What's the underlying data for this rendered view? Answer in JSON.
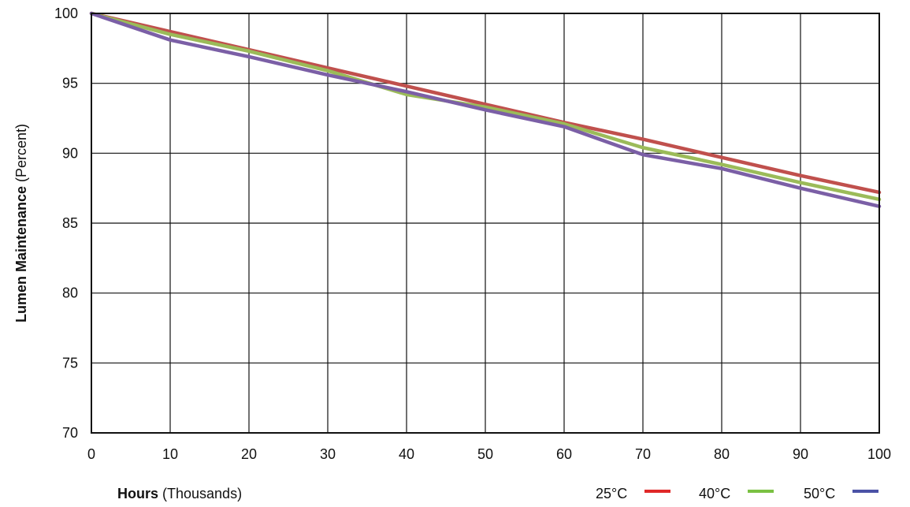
{
  "chart_data": {
    "type": "line",
    "x_label": {
      "bold": "Hours",
      "normal": " (Thousands)"
    },
    "y_label": {
      "bold": "Lumen Maintenance",
      "normal": " (Percent)"
    },
    "x_ticks": [
      "0",
      "10",
      "20",
      "30",
      "40",
      "50",
      "60",
      "70",
      "80",
      "90",
      "100"
    ],
    "y_ticks": [
      "70",
      "75",
      "80",
      "85",
      "90",
      "95",
      "100"
    ],
    "xlim": [
      0,
      100
    ],
    "ylim": [
      70,
      100
    ],
    "grid": true,
    "legend_position": "bottom-right",
    "x": [
      0,
      10,
      20,
      30,
      40,
      50,
      60,
      70,
      80,
      90,
      100
    ],
    "series": [
      {
        "name": "25°C",
        "color": "#e02828",
        "line_color": "#c0504d",
        "values": [
          100,
          98.7,
          97.4,
          96.1,
          94.8,
          93.5,
          92.2,
          91.0,
          89.7,
          88.4,
          87.2
        ]
      },
      {
        "name": "40°C",
        "color": "#7ac143",
        "line_color": "#9bbb59",
        "values": [
          100,
          98.5,
          97.3,
          95.9,
          94.2,
          93.3,
          92.1,
          90.4,
          89.2,
          87.9,
          86.7
        ]
      },
      {
        "name": "50°C",
        "color": "#4b52a6",
        "line_color": "#7b5fa6",
        "values": [
          100,
          98.1,
          96.9,
          95.6,
          94.4,
          93.1,
          91.9,
          89.9,
          88.9,
          87.5,
          86.2
        ]
      }
    ]
  }
}
